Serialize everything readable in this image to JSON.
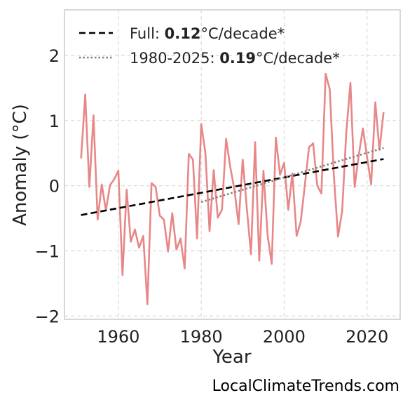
{
  "chart_data": {
    "type": "line",
    "ylabel": "Anomaly (°C)",
    "xlabel": "Year",
    "xlim": [
      1947,
      2028
    ],
    "ylim": [
      -2.05,
      2.7
    ],
    "x_ticks": [
      1960,
      1980,
      2000,
      2020
    ],
    "y_ticks": [
      -2,
      -1,
      0,
      1,
      2
    ],
    "y_tick_labels": [
      "−2",
      "−1",
      "0",
      "1",
      "2"
    ],
    "grid": true,
    "legend_position": "top-left",
    "legend": [
      {
        "prefix": "Full: ",
        "value": "0.12",
        "suffix": "°C/decade*",
        "style": "dashed",
        "color": "#000000"
      },
      {
        "prefix": "1980-2025: ",
        "value": "0.19",
        "suffix": "°C/decade*",
        "style": "dotted",
        "color": "#808080"
      }
    ],
    "series": [
      {
        "color": "#e88787",
        "x": [
          1951,
          1952,
          1953,
          1954,
          1955,
          1956,
          1957,
          1958,
          1959,
          1960,
          1961,
          1962,
          1963,
          1964,
          1965,
          1966,
          1967,
          1968,
          1969,
          1970,
          1971,
          1972,
          1973,
          1974,
          1975,
          1976,
          1977,
          1978,
          1979,
          1980,
          1981,
          1982,
          1983,
          1984,
          1985,
          1986,
          1987,
          1988,
          1989,
          1990,
          1991,
          1992,
          1993,
          1994,
          1995,
          1996,
          1997,
          1998,
          1999,
          2000,
          2001,
          2002,
          2003,
          2004,
          2005,
          2006,
          2007,
          2008,
          2009,
          2010,
          2011,
          2012,
          2013,
          2014,
          2015,
          2016,
          2017,
          2018,
          2019,
          2020,
          2021,
          2022,
          2023,
          2024
        ],
        "values": [
          0.42,
          1.4,
          -0.02,
          1.08,
          -0.52,
          0.02,
          -0.38,
          0.01,
          0.1,
          0.23,
          -1.37,
          -0.06,
          -0.86,
          -0.67,
          -0.95,
          -0.77,
          -1.82,
          0.04,
          -0.02,
          -0.46,
          -0.52,
          -1.01,
          -0.42,
          -0.98,
          -0.81,
          -1.27,
          0.49,
          0.4,
          -0.81,
          0.95,
          0.5,
          -0.7,
          0.24,
          -0.49,
          -0.37,
          0.72,
          0.29,
          -0.06,
          -0.59,
          0.4,
          -0.35,
          -1.05,
          0.67,
          -1.15,
          0.23,
          -0.76,
          -1.2,
          0.74,
          0.17,
          0.35,
          -0.37,
          0.19,
          -0.77,
          -0.55,
          0.01,
          0.59,
          0.65,
          0.0,
          -0.12,
          1.72,
          1.48,
          0.15,
          -0.78,
          -0.39,
          0.82,
          1.58,
          -0.02,
          0.47,
          0.88,
          0.44,
          0.02,
          1.28,
          0.55,
          1.13
        ]
      }
    ],
    "trend_lines": [
      {
        "name": "full",
        "color": "#000000",
        "style": "dashed",
        "x": [
          1951,
          2024
        ],
        "y": [
          -0.45,
          0.41
        ]
      },
      {
        "name": "recent",
        "color": "#808080",
        "style": "dotted",
        "x": [
          1980,
          2024
        ],
        "y": [
          -0.25,
          0.58
        ]
      }
    ]
  },
  "footer": {
    "source": "LocalClimateTrends.com"
  }
}
